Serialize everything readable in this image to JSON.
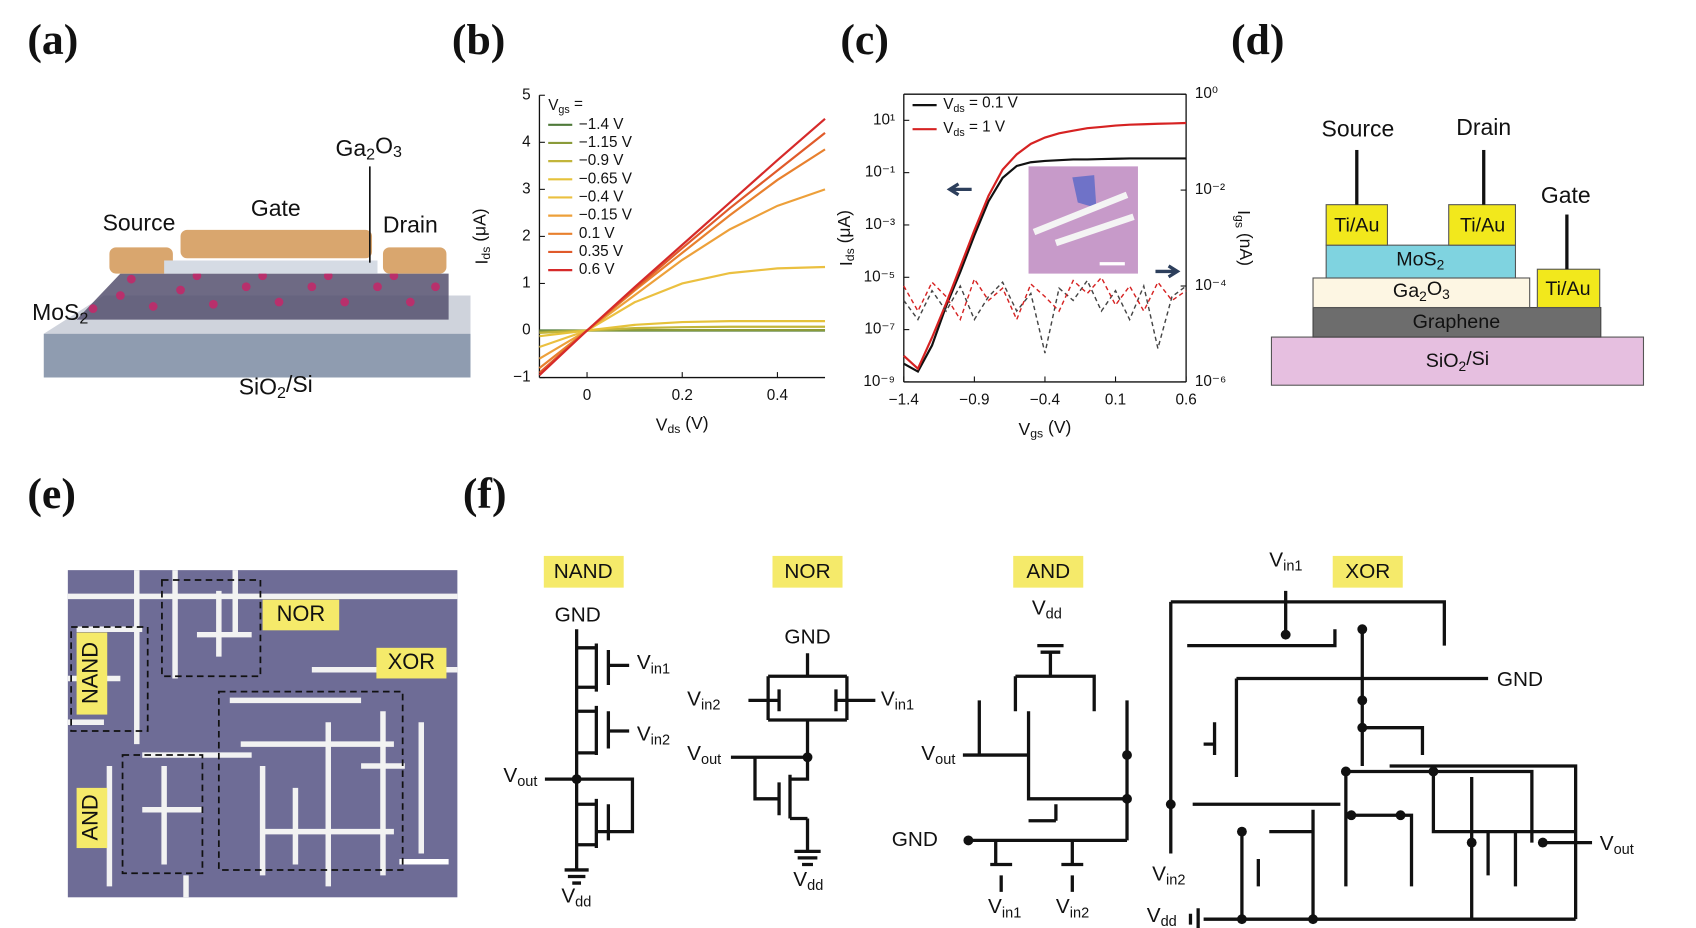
{
  "panel_labels": [
    "(a)",
    "(b)",
    "(c)",
    "(d)",
    "(e)",
    "(f)"
  ],
  "panel_a": {
    "top_gate": "Ga2O3",
    "source": "Source",
    "gate": "Gate",
    "drain": "Drain",
    "channel": "MoS2",
    "substrate": "SiO2/Si"
  },
  "chart_data": [
    {
      "type": "line",
      "xlabel": "Vds (V)",
      "ylabel": "Ids (μA)",
      "legend_title": "Vgs =",
      "x": [
        -0.1,
        0,
        0.1,
        0.2,
        0.3,
        0.4,
        0.5
      ],
      "xlim": [
        -0.1,
        0.5
      ],
      "xticks": [
        0,
        0.2,
        0.4
      ],
      "ylim": [
        -1,
        5
      ],
      "yticks": [
        {
          "value": -1,
          "label": "−1"
        },
        0,
        1,
        2,
        3,
        4,
        5
      ],
      "legend": "upper left",
      "series": [
        {
          "name": "−1.4 V",
          "color": "#4f7a3a",
          "values": [
            0,
            0,
            0,
            0,
            0,
            0,
            0
          ]
        },
        {
          "name": "−1.15 V",
          "color": "#8a9b3a",
          "values": [
            -0.02,
            0,
            0.01,
            0.01,
            0.01,
            0.01,
            0.01
          ]
        },
        {
          "name": "−0.9 V",
          "color": "#c2b53a",
          "values": [
            -0.05,
            0,
            0.05,
            0.07,
            0.08,
            0.08,
            0.08
          ]
        },
        {
          "name": "−0.65 V",
          "color": "#e5c23a",
          "values": [
            -0.12,
            0,
            0.12,
            0.18,
            0.2,
            0.2,
            0.2
          ]
        },
        {
          "name": "−0.4 V",
          "color": "#ebc040",
          "values": [
            -0.35,
            0,
            0.6,
            1.0,
            1.22,
            1.32,
            1.35
          ]
        },
        {
          "name": "−0.15 V",
          "color": "#eda03a",
          "values": [
            -0.6,
            0,
            0.75,
            1.5,
            2.15,
            2.65,
            3.0
          ]
        },
        {
          "name": "0.1 V",
          "color": "#e8802e",
          "values": [
            -0.8,
            0,
            0.85,
            1.65,
            2.45,
            3.2,
            3.85
          ]
        },
        {
          "name": "0.35 V",
          "color": "#e05a2a",
          "values": [
            -0.9,
            0,
            0.88,
            1.75,
            2.6,
            3.4,
            4.2
          ]
        },
        {
          "name": "0.6 V",
          "color": "#d62a2a",
          "values": [
            -0.95,
            0,
            0.92,
            1.82,
            2.72,
            3.62,
            4.5
          ]
        }
      ]
    },
    {
      "type": "line",
      "xlabel": "Vgs (V)",
      "ylabel": "Ids (μA)",
      "y2label": "Igs (nA)",
      "ylog": true,
      "y2log": true,
      "x": [
        -1.4,
        -1.3,
        -1.2,
        -1.1,
        -1.0,
        -0.9,
        -0.8,
        -0.7,
        -0.6,
        -0.5,
        -0.4,
        -0.3,
        -0.2,
        -0.1,
        0,
        0.1,
        0.2,
        0.3,
        0.4,
        0.5,
        0.6
      ],
      "xlim": [
        -1.4,
        0.6
      ],
      "xticks": [
        {
          "value": -1.4,
          "label": "−1.4"
        },
        {
          "value": -0.9,
          "label": "−0.9"
        },
        {
          "value": -0.4,
          "label": "−0.4"
        },
        0.1,
        0.6
      ],
      "ylim": [
        1e-09,
        100
      ],
      "yticks": [
        {
          "value": 1e-09,
          "label": "10⁻⁹"
        },
        {
          "value": 1e-07,
          "label": "10⁻⁷"
        },
        {
          "value": 1e-05,
          "label": "10⁻⁵"
        },
        {
          "value": 0.001,
          "label": "10⁻³"
        },
        {
          "value": 0.1,
          "label": "10⁻¹"
        },
        {
          "value": 10,
          "label": "10¹"
        }
      ],
      "y2lim": [
        1e-06,
        1
      ],
      "y2ticks": [
        {
          "value": 1e-06,
          "label": "10⁻⁶"
        },
        {
          "value": 0.0001,
          "label": "10⁻⁴"
        },
        {
          "value": 0.01,
          "label": "10⁻²"
        },
        {
          "value": 1,
          "label": "10⁰"
        }
      ],
      "legend": "upper left",
      "series": [
        {
          "name": "Vds = 0.1 V",
          "color": "#111111",
          "values": [
            5e-09,
            2.5e-09,
            2.5e-08,
            8e-07,
            1.6e-05,
            0.0004,
            0.008,
            0.063,
            0.18,
            0.25,
            0.28,
            0.3,
            0.32,
            0.32,
            0.33,
            0.34,
            0.35,
            0.35,
            0.35,
            0.35,
            0.35
          ]
        },
        {
          "name": "Vds = 1 V",
          "color": "#d62222",
          "values": [
            1e-08,
            3.2e-09,
            5e-08,
            1e-06,
            2.5e-05,
            0.00063,
            0.013,
            0.13,
            0.5,
            1.26,
            2.2,
            3.2,
            4,
            5,
            5.6,
            6.3,
            6.8,
            7.1,
            7.4,
            7.6,
            7.9
          ]
        },
        {
          "color": "#444444",
          "axis": "y2",
          "linestyle": "dashed",
          "values": [
            5e-05,
            2e-05,
            8e-05,
            3e-05,
            0.0001,
            2e-05,
            6e-05,
            0.00012,
            3e-05,
            7e-05,
            4e-06,
            9e-05,
            5e-05,
            0.00013,
            3e-05,
            8e-05,
            2e-05,
            0.0001,
            5e-06,
            6e-05,
            0.0001
          ]
        },
        {
          "color": "#d62222",
          "axis": "y2",
          "linestyle": "dashed",
          "values": [
            0.0001,
            3e-05,
            0.00012,
            6e-05,
            2e-05,
            0.00014,
            5e-05,
            9e-05,
            2e-05,
            0.00011,
            6e-05,
            3e-05,
            0.00013,
            7e-05,
            0.00015,
            4e-05,
            0.0001,
            3e-05,
            0.00012,
            5e-05,
            8e-05
          ]
        }
      ]
    }
  ],
  "panel_d": {
    "source": "Source",
    "drain": "Drain",
    "gate": "Gate",
    "contact_source": "Ti/Au",
    "contact_drain": "Ti/Au",
    "contact_gate": "Ti/Au",
    "channel": "MoS2",
    "dielectric": "Ga2O3",
    "graphene": "Graphene",
    "substrate": "SiO2/Si"
  },
  "panel_e": {
    "nor": "NOR",
    "nand": "NAND",
    "xor": "XOR",
    "and": "AND"
  },
  "panel_f": {
    "nand": {
      "title": "NAND",
      "gnd": "GND",
      "vin1": "Vin1",
      "vin2": "Vin2",
      "vout": "Vout",
      "vdd": "Vdd"
    },
    "nor": {
      "title": "NOR",
      "gnd": "GND",
      "vin2": "Vin2",
      "vin1": "Vin1",
      "vout": "Vout",
      "vdd": "Vdd"
    },
    "and": {
      "title": "AND",
      "vdd": "Vdd",
      "vout": "Vout",
      "gnd": "GND",
      "vin1": "Vin1",
      "vin2": "Vin2"
    },
    "xor": {
      "title": "XOR",
      "vin1": "Vin1",
      "gnd": "GND",
      "vout": "Vout",
      "vin2": "Vin2",
      "vdd": "Vdd"
    }
  }
}
